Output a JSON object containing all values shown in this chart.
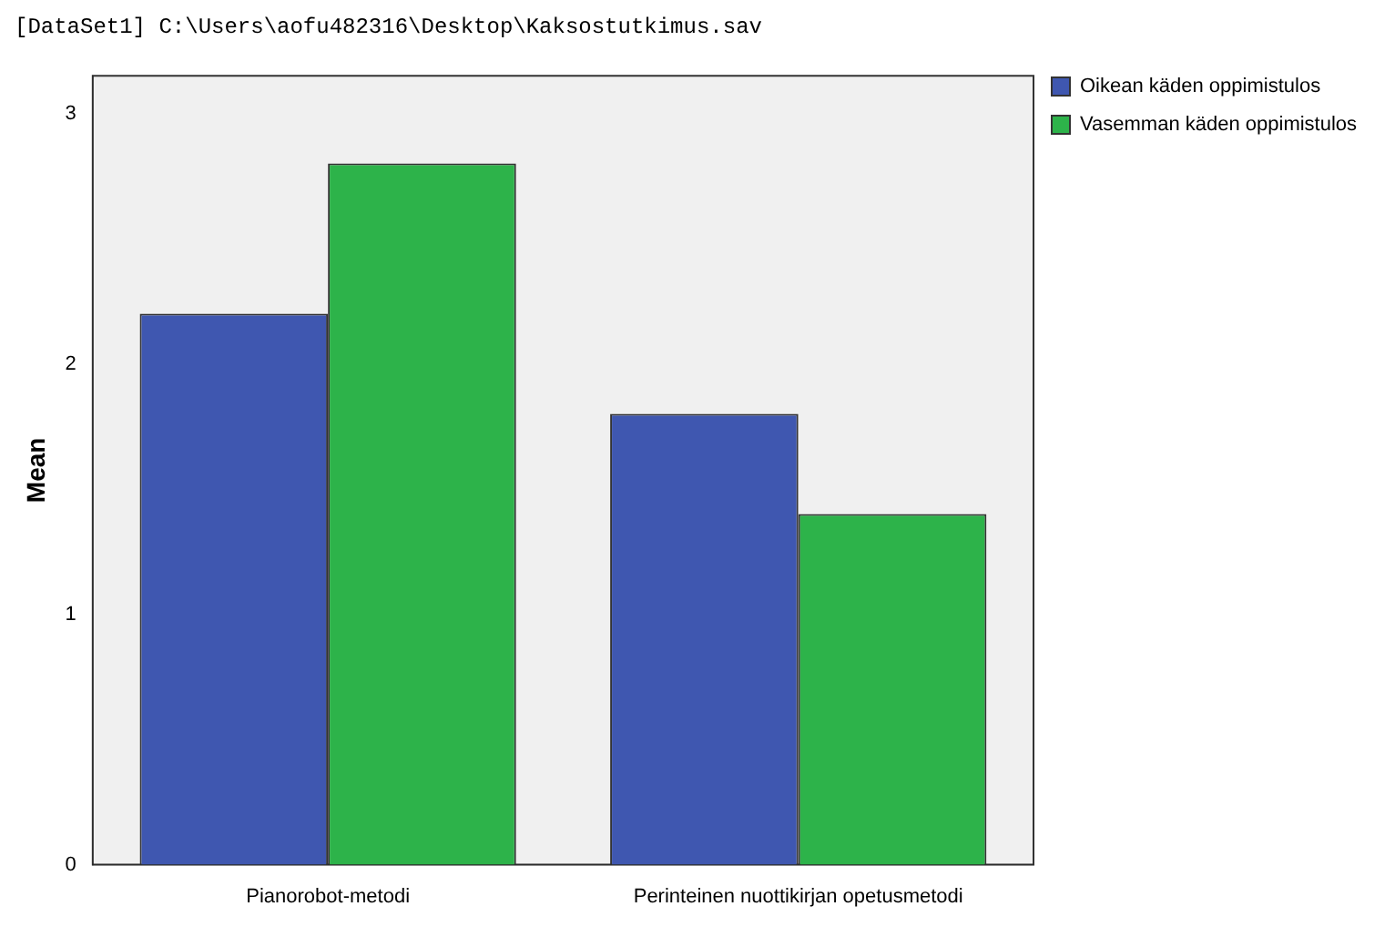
{
  "chart_data": {
    "type": "bar",
    "title": "[DataSet1] C:\\Users\\aofu482316\\Desktop\\Kaksostutkimus.sav",
    "ylabel": "Mean",
    "categories": [
      "Pianorobot-metodi",
      "Perinteinen nuottikirjan opetusmetodi"
    ],
    "series": [
      {
        "name": "Oikean käden oppimistulos",
        "color": "#3f57b0",
        "values": [
          2.2,
          1.8
        ]
      },
      {
        "name": "Vasemman käden oppimistulos",
        "color": "#2db34a",
        "values": [
          2.8,
          1.4
        ]
      }
    ],
    "ylim": [
      0,
      3.15
    ],
    "yticks": [
      0,
      1,
      2,
      3
    ],
    "grid": false,
    "legend": "top right"
  }
}
